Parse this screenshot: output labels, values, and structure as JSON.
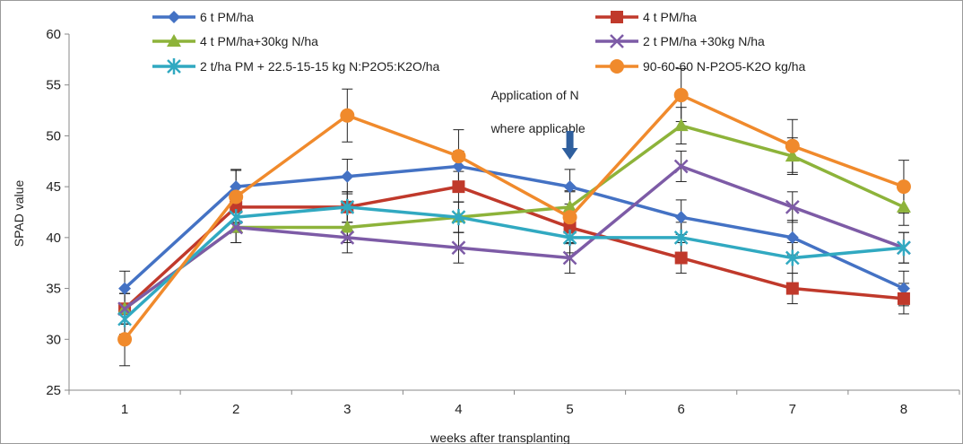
{
  "chart_data": {
    "type": "line",
    "xlabel": "weeks after transplanting",
    "ylabel": "SPAD value",
    "x": [
      1,
      2,
      3,
      4,
      5,
      6,
      7,
      8
    ],
    "ylim": [
      25,
      60
    ],
    "yticks": [
      25,
      30,
      35,
      40,
      45,
      50,
      55,
      60
    ],
    "grid": false,
    "legend_position": "top",
    "series": [
      {
        "name": "6 t PM/ha",
        "color": "#4472C4",
        "marker": "diamond",
        "values": [
          35,
          45,
          46,
          47,
          45,
          42,
          40,
          35
        ],
        "errors": [
          1.7,
          1.7,
          1.7,
          1.5,
          1.7,
          1.7,
          1.7,
          1.7
        ]
      },
      {
        "name": "4 t PM/ha",
        "color": "#C0392B",
        "marker": "square",
        "values": [
          33,
          43,
          43,
          45,
          41,
          38,
          35,
          34
        ],
        "errors": [
          1.5,
          1.5,
          1.5,
          1.5,
          1.5,
          1.5,
          1.5,
          1.5
        ]
      },
      {
        "name": "4 t PM/ha+30kg N/ha",
        "color": "#8DB33A",
        "marker": "triangle",
        "values": [
          33,
          41,
          41,
          42,
          43,
          51,
          48,
          43
        ],
        "errors": [
          1.5,
          1.5,
          1.5,
          1.5,
          1.5,
          1.8,
          1.8,
          1.8
        ]
      },
      {
        "name": "2 t PM/ha +30kg N/ha",
        "color": "#7D5BA6",
        "marker": "x",
        "values": [
          33,
          41,
          40,
          39,
          38,
          47,
          43,
          39
        ],
        "errors": [
          1.5,
          1.5,
          1.5,
          1.5,
          1.5,
          1.5,
          1.5,
          1.5
        ]
      },
      {
        "name": "2 t/ha PM + 22.5-15-15 kg N:P2O5:K2O/ha",
        "color": "#31A9C1",
        "marker": "star",
        "values": [
          32,
          42,
          43,
          42,
          40,
          40,
          38,
          39
        ],
        "errors": [
          1.5,
          1.5,
          1.5,
          1.5,
          1.5,
          1.5,
          1.5,
          1.5
        ]
      },
      {
        "name": "90-60-60 N-P2O5-K2O kg/ha",
        "color": "#F08A2C",
        "marker": "circle",
        "values": [
          30,
          44,
          52,
          48,
          42,
          54,
          49,
          45
        ],
        "errors": [
          2.6,
          2.6,
          2.6,
          2.6,
          2.6,
          2.6,
          2.6,
          2.6
        ]
      }
    ],
    "annotations": [
      {
        "lines": [
          "Application of N",
          "where applicable"
        ],
        "x": 5,
        "arrow": "down"
      }
    ]
  }
}
